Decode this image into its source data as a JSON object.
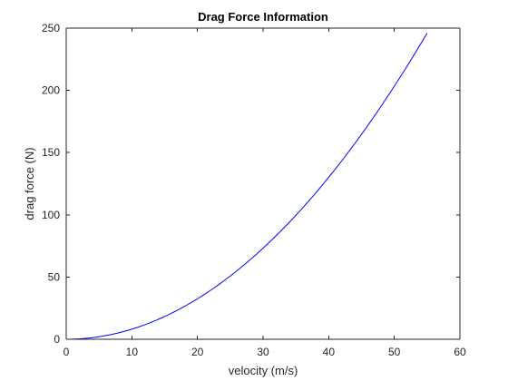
{
  "chart_data": {
    "type": "line",
    "title": "Drag Force Information",
    "xlabel": "velocity (m/s)",
    "ylabel": "drag force (N)",
    "xlim": [
      0,
      60
    ],
    "ylim": [
      0,
      250
    ],
    "x_ticks": [
      0,
      10,
      20,
      30,
      40,
      50,
      60
    ],
    "y_ticks": [
      0,
      50,
      100,
      150,
      200,
      250
    ],
    "x_tick_labels": [
      "0",
      "10",
      "20",
      "30",
      "40",
      "50",
      "60"
    ],
    "y_tick_labels": [
      "0",
      "50",
      "100",
      "150",
      "200",
      "250"
    ],
    "grid": false,
    "box": true,
    "series": [
      {
        "color": "#0000ff",
        "x": [
          0,
          5,
          10,
          15,
          20,
          25,
          30,
          35,
          40,
          45,
          50,
          55
        ],
        "y": [
          0,
          2.0,
          8.1,
          18.3,
          32.5,
          50.8,
          73.2,
          99.6,
          130.1,
          164.7,
          203.3,
          246.0
        ]
      }
    ]
  }
}
